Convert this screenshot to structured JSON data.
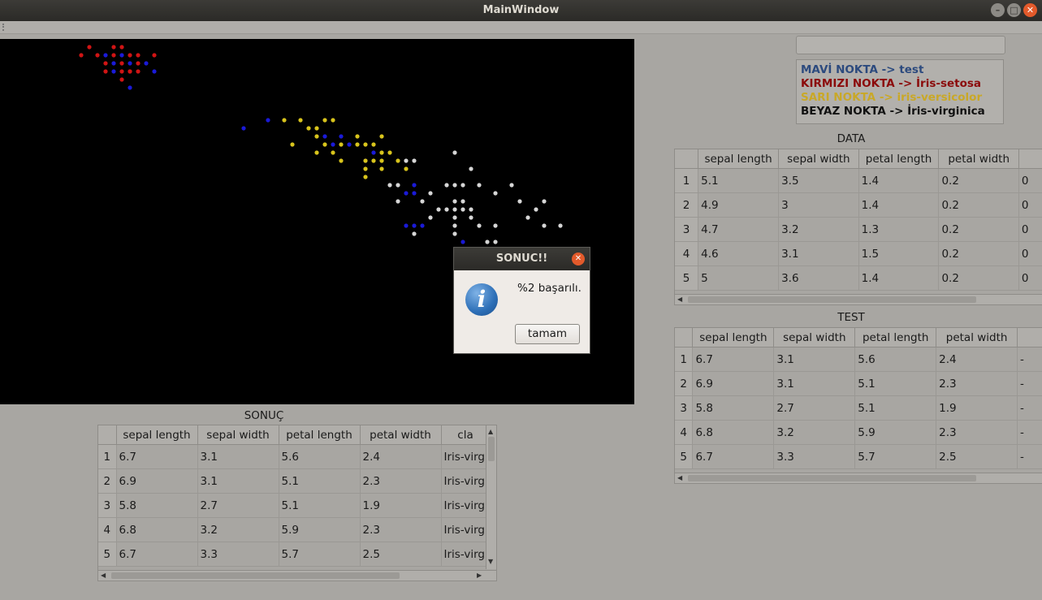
{
  "window": {
    "title": "MainWindow"
  },
  "legend": [
    {
      "text": "MAVİ NOKTA -> test",
      "color": "#2c4a7e"
    },
    {
      "text": "KIRMIZI NOKTA ->  İris-setosa",
      "color": "#8b0a0a"
    },
    {
      "text": "SARI NOKTA -> iris-versicolor",
      "color": "#c9a827"
    },
    {
      "text": "BEYAZ NOKTA -> İris-virginica",
      "color": "#111111"
    }
  ],
  "data_table": {
    "caption": "DATA",
    "columns": [
      "sepal length",
      "sepal width",
      "petal length",
      "petal width",
      ""
    ],
    "rows": [
      [
        "1",
        "5.1",
        "3.5",
        "1.4",
        "0.2",
        "0"
      ],
      [
        "2",
        "4.9",
        "3",
        "1.4",
        "0.2",
        "0"
      ],
      [
        "3",
        "4.7",
        "3.2",
        "1.3",
        "0.2",
        "0"
      ],
      [
        "4",
        "4.6",
        "3.1",
        "1.5",
        "0.2",
        "0"
      ],
      [
        "5",
        "5",
        "3.6",
        "1.4",
        "0.2",
        "0"
      ]
    ]
  },
  "test_table": {
    "caption": "TEST",
    "columns": [
      "sepal length",
      "sepal width",
      "petal length",
      "petal width",
      ""
    ],
    "rows": [
      [
        "1",
        "6.7",
        "3.1",
        "5.6",
        "2.4",
        "-"
      ],
      [
        "2",
        "6.9",
        "3.1",
        "5.1",
        "2.3",
        "-"
      ],
      [
        "3",
        "5.8",
        "2.7",
        "5.1",
        "1.9",
        "-"
      ],
      [
        "4",
        "6.8",
        "3.2",
        "5.9",
        "2.3",
        "-"
      ],
      [
        "5",
        "6.7",
        "3.3",
        "5.7",
        "2.5",
        "-"
      ]
    ]
  },
  "result_table": {
    "caption": "SONUÇ",
    "columns": [
      "sepal length",
      "sepal width",
      "petal length",
      "petal width",
      "cla"
    ],
    "rows": [
      [
        "1",
        "6.7",
        "3.1",
        "5.6",
        "2.4",
        "Iris-virg"
      ],
      [
        "2",
        "6.9",
        "3.1",
        "5.1",
        "2.3",
        "Iris-virg"
      ],
      [
        "3",
        "5.8",
        "2.7",
        "5.1",
        "1.9",
        "Iris-virg"
      ],
      [
        "4",
        "6.8",
        "3.2",
        "5.9",
        "2.3",
        "Iris-virg"
      ],
      [
        "5",
        "6.7",
        "3.3",
        "5.7",
        "2.5",
        "Iris-virg"
      ]
    ]
  },
  "dialog": {
    "title": "SONUC!!",
    "message": "%2 başarılı.",
    "button": "tamam",
    "icon": "info-icon"
  },
  "colors": {
    "red": "#d01414",
    "blue": "#1a1ad8",
    "yellow": "#d8c41c",
    "white": "#d6d6d6"
  }
}
